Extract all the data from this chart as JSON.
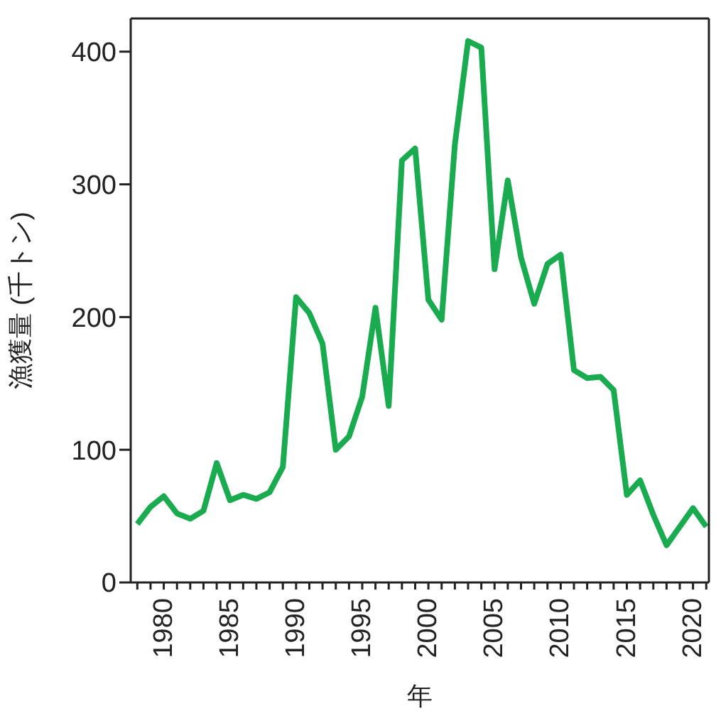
{
  "chart_data": {
    "type": "line",
    "xlabel": "年",
    "ylabel": "漁獲量 (千トン)",
    "x": [
      1978,
      1979,
      1980,
      1981,
      1982,
      1983,
      1984,
      1985,
      1986,
      1987,
      1988,
      1989,
      1990,
      1991,
      1992,
      1993,
      1994,
      1995,
      1996,
      1997,
      1998,
      1999,
      2000,
      2001,
      2002,
      2003,
      2004,
      2005,
      2006,
      2007,
      2008,
      2009,
      2010,
      2011,
      2012,
      2013,
      2014,
      2015,
      2016,
      2017,
      2018,
      2019,
      2020,
      2021
    ],
    "series": [
      {
        "color": "#1aaa50",
        "values": [
          44,
          57,
          65,
          52,
          48,
          54,
          90,
          62,
          66,
          63,
          68,
          87,
          215,
          203,
          180,
          100,
          110,
          140,
          207,
          133,
          318,
          327,
          213,
          198,
          330,
          408,
          403,
          236,
          303,
          245,
          210,
          240,
          247,
          160,
          154,
          155,
          145,
          66,
          77,
          51,
          28,
          42,
          56,
          42
        ]
      }
    ],
    "xlim": [
      1977.5,
      2021.2
    ],
    "xticks": [
      {
        "value": 1978,
        "label": null
      },
      {
        "value": 1979,
        "label": null
      },
      1980,
      {
        "value": 1981,
        "label": null
      },
      {
        "value": 1982,
        "label": null
      },
      {
        "value": 1983,
        "label": null
      },
      {
        "value": 1984,
        "label": null
      },
      1985,
      {
        "value": 1986,
        "label": null
      },
      {
        "value": 1987,
        "label": null
      },
      {
        "value": 1988,
        "label": null
      },
      {
        "value": 1989,
        "label": null
      },
      1990,
      {
        "value": 1991,
        "label": null
      },
      {
        "value": 1992,
        "label": null
      },
      {
        "value": 1993,
        "label": null
      },
      {
        "value": 1994,
        "label": null
      },
      1995,
      {
        "value": 1996,
        "label": null
      },
      {
        "value": 1997,
        "label": null
      },
      {
        "value": 1998,
        "label": null
      },
      {
        "value": 1999,
        "label": null
      },
      2000,
      {
        "value": 2001,
        "label": null
      },
      {
        "value": 2002,
        "label": null
      },
      {
        "value": 2003,
        "label": null
      },
      {
        "value": 2004,
        "label": null
      },
      2005,
      {
        "value": 2006,
        "label": null
      },
      {
        "value": 2007,
        "label": null
      },
      {
        "value": 2008,
        "label": null
      },
      {
        "value": 2009,
        "label": null
      },
      2010,
      {
        "value": 2011,
        "label": null
      },
      {
        "value": 2012,
        "label": null
      },
      {
        "value": 2013,
        "label": null
      },
      {
        "value": 2014,
        "label": null
      },
      2015,
      {
        "value": 2016,
        "label": null
      },
      {
        "value": 2017,
        "label": null
      },
      {
        "value": 2018,
        "label": null
      },
      {
        "value": 2019,
        "label": null
      },
      2020,
      {
        "value": 2021,
        "label": null
      }
    ],
    "ylim": [
      0,
      425
    ],
    "yticks": [
      0,
      100,
      200,
      300,
      400
    ],
    "marker": "none",
    "line_style": "solid"
  }
}
